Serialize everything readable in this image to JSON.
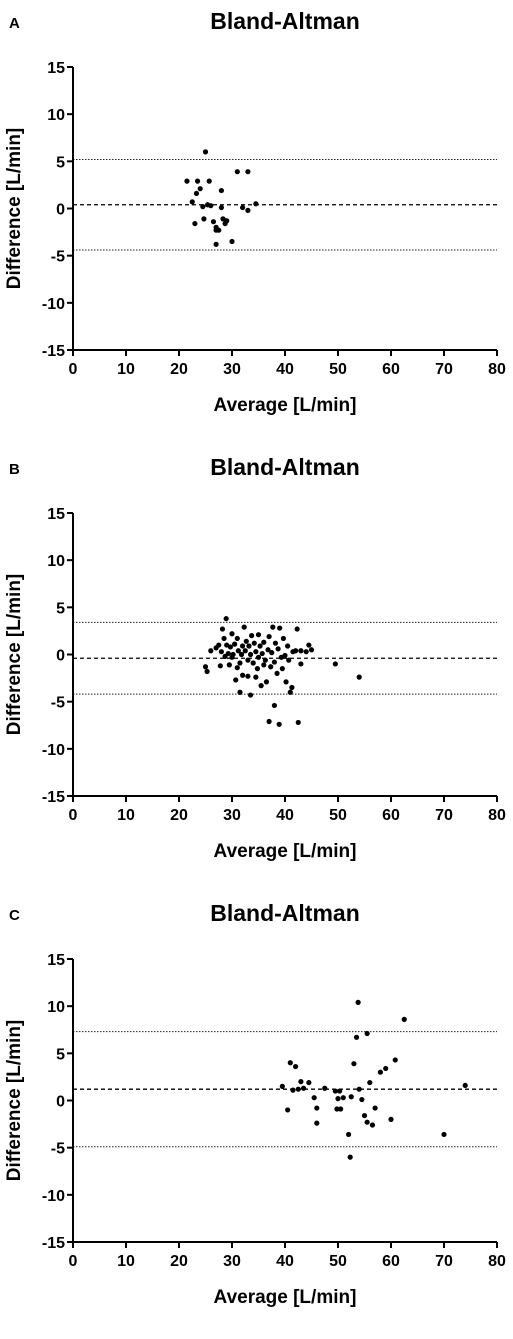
{
  "chart_data": [
    {
      "type": "scatter",
      "panel_label": "A",
      "title": "Bland-Altman",
      "xlabel": "Average [L/min]",
      "ylabel": "Difference [L/min]",
      "xlim": [
        0,
        80
      ],
      "ylim": [
        -15,
        15
      ],
      "x_ticks": [
        0,
        10,
        20,
        30,
        40,
        50,
        60,
        70,
        80
      ],
      "y_ticks": [
        15,
        10,
        5,
        0,
        -5,
        -10,
        -15
      ],
      "bias": 0.4,
      "upper_loa": 5.2,
      "lower_loa": -4.4,
      "points": [
        [
          21.5,
          2.9
        ],
        [
          22.5,
          0.7
        ],
        [
          23.0,
          -1.6
        ],
        [
          23.3,
          1.6
        ],
        [
          23.5,
          2.9
        ],
        [
          24.0,
          2.1
        ],
        [
          24.5,
          0.2
        ],
        [
          24.7,
          -1.1
        ],
        [
          25.0,
          6.0
        ],
        [
          25.4,
          0.4
        ],
        [
          25.7,
          2.9
        ],
        [
          26.0,
          0.3
        ],
        [
          26.5,
          -1.4
        ],
        [
          27.0,
          -2.0
        ],
        [
          27.0,
          -2.3
        ],
        [
          27.0,
          -3.8
        ],
        [
          27.5,
          -2.3
        ],
        [
          28.0,
          0.1
        ],
        [
          28.0,
          1.9
        ],
        [
          28.3,
          -1.1
        ],
        [
          28.7,
          -1.6
        ],
        [
          29.0,
          -1.3
        ],
        [
          30.0,
          -3.5
        ],
        [
          31.0,
          3.9
        ],
        [
          32.0,
          0.1
        ],
        [
          33.0,
          3.9
        ],
        [
          33.0,
          -0.2
        ],
        [
          34.5,
          0.5
        ]
      ]
    },
    {
      "type": "scatter",
      "panel_label": "B",
      "title": "Bland-Altman",
      "xlabel": "Average [L/min]",
      "ylabel": "Difference [L/min]",
      "xlim": [
        0,
        80
      ],
      "ylim": [
        -15,
        15
      ],
      "x_ticks": [
        0,
        10,
        20,
        30,
        40,
        50,
        60,
        70,
        80
      ],
      "y_ticks": [
        15,
        10,
        5,
        0,
        -5,
        -10,
        -15
      ],
      "bias": -0.4,
      "upper_loa": 3.4,
      "lower_loa": -4.2,
      "points": [
        [
          25.0,
          -1.3
        ],
        [
          25.3,
          -1.8
        ],
        [
          26.0,
          0.4
        ],
        [
          27.0,
          0.7
        ],
        [
          27.5,
          1.0
        ],
        [
          27.8,
          -1.2
        ],
        [
          28.0,
          0.3
        ],
        [
          28.2,
          2.7
        ],
        [
          28.5,
          1.7
        ],
        [
          28.7,
          -0.2
        ],
        [
          28.9,
          3.8
        ],
        [
          29.0,
          1.0
        ],
        [
          29.3,
          0.1
        ],
        [
          29.5,
          -1.1
        ],
        [
          29.7,
          0.8
        ],
        [
          30.0,
          2.2
        ],
        [
          30.0,
          -0.3
        ],
        [
          30.2,
          0.0
        ],
        [
          30.5,
          1.1
        ],
        [
          30.7,
          -2.7
        ],
        [
          31.0,
          -1.4
        ],
        [
          31.0,
          1.7
        ],
        [
          31.2,
          0.4
        ],
        [
          31.5,
          -0.9
        ],
        [
          31.5,
          -4.0
        ],
        [
          31.8,
          0.0
        ],
        [
          32.0,
          0.9
        ],
        [
          32.0,
          -2.2
        ],
        [
          32.3,
          2.9
        ],
        [
          32.5,
          0.4
        ],
        [
          32.7,
          1.4
        ],
        [
          33.0,
          -0.6
        ],
        [
          33.0,
          -2.3
        ],
        [
          33.2,
          0.9
        ],
        [
          33.5,
          0.0
        ],
        [
          33.5,
          -4.3
        ],
        [
          33.7,
          2.0
        ],
        [
          34.0,
          -0.9
        ],
        [
          34.2,
          1.2
        ],
        [
          34.5,
          -2.4
        ],
        [
          34.5,
          0.3
        ],
        [
          34.8,
          -1.5
        ],
        [
          35.0,
          2.1
        ],
        [
          35.0,
          -0.3
        ],
        [
          35.3,
          0.9
        ],
        [
          35.5,
          -3.3
        ],
        [
          35.7,
          0.1
        ],
        [
          36.0,
          -1.1
        ],
        [
          36.0,
          1.3
        ],
        [
          36.3,
          -0.6
        ],
        [
          36.5,
          -2.9
        ],
        [
          36.8,
          0.5
        ],
        [
          37.0,
          -7.1
        ],
        [
          37.0,
          1.9
        ],
        [
          37.3,
          -1.3
        ],
        [
          37.5,
          0.2
        ],
        [
          37.7,
          2.9
        ],
        [
          38.0,
          -5.4
        ],
        [
          38.0,
          -0.8
        ],
        [
          38.2,
          1.2
        ],
        [
          38.5,
          -2.0
        ],
        [
          38.7,
          0.6
        ],
        [
          38.9,
          -7.4
        ],
        [
          39.0,
          2.8
        ],
        [
          39.3,
          -0.3
        ],
        [
          39.5,
          -1.5
        ],
        [
          39.7,
          1.7
        ],
        [
          40.0,
          -0.1
        ],
        [
          40.2,
          -2.9
        ],
        [
          40.5,
          0.9
        ],
        [
          40.7,
          -0.6
        ],
        [
          41.0,
          -4.0
        ],
        [
          41.3,
          -3.5
        ],
        [
          41.5,
          0.3
        ],
        [
          42.0,
          0.4
        ],
        [
          42.3,
          2.7
        ],
        [
          42.5,
          -7.2
        ],
        [
          43.0,
          -1.0
        ],
        [
          43.0,
          0.4
        ],
        [
          44.0,
          0.3
        ],
        [
          44.5,
          1.0
        ],
        [
          45.0,
          0.5
        ],
        [
          49.5,
          -1.0
        ],
        [
          54.0,
          -2.4
        ]
      ]
    },
    {
      "type": "scatter",
      "panel_label": "C",
      "title": "Bland-Altman",
      "xlabel": "Average [L/min]",
      "ylabel": "Difference [L/min]",
      "xlim": [
        0,
        80
      ],
      "ylim": [
        -15,
        15
      ],
      "x_ticks": [
        0,
        10,
        20,
        30,
        40,
        50,
        60,
        70,
        80
      ],
      "y_ticks": [
        15,
        10,
        5,
        0,
        -5,
        -10,
        -15
      ],
      "bias": 1.2,
      "upper_loa": 7.3,
      "lower_loa": -4.9,
      "points": [
        [
          39.5,
          1.5
        ],
        [
          40.5,
          -1.0
        ],
        [
          41.0,
          4.0
        ],
        [
          41.5,
          1.1
        ],
        [
          42.0,
          3.6
        ],
        [
          42.5,
          1.2
        ],
        [
          43.0,
          2.0
        ],
        [
          43.5,
          1.3
        ],
        [
          44.5,
          1.9
        ],
        [
          45.5,
          0.3
        ],
        [
          46.0,
          -0.8
        ],
        [
          46.0,
          -2.4
        ],
        [
          47.5,
          1.3
        ],
        [
          49.5,
          1.0
        ],
        [
          49.8,
          -0.9
        ],
        [
          50.0,
          0.2
        ],
        [
          50.3,
          1.0
        ],
        [
          50.5,
          -0.9
        ],
        [
          51.0,
          0.3
        ],
        [
          52.0,
          -3.6
        ],
        [
          52.3,
          -6.0
        ],
        [
          52.5,
          0.4
        ],
        [
          53.0,
          3.9
        ],
        [
          53.5,
          6.7
        ],
        [
          53.8,
          10.4
        ],
        [
          54.0,
          1.2
        ],
        [
          54.5,
          0.1
        ],
        [
          55.0,
          -1.6
        ],
        [
          55.5,
          -2.3
        ],
        [
          55.5,
          7.1
        ],
        [
          56.0,
          1.9
        ],
        [
          56.5,
          -2.6
        ],
        [
          57.0,
          -0.8
        ],
        [
          58.0,
          3.0
        ],
        [
          59.0,
          3.4
        ],
        [
          60.0,
          -2.0
        ],
        [
          60.8,
          4.3
        ],
        [
          62.5,
          8.6
        ],
        [
          70.0,
          -3.6
        ],
        [
          74.0,
          1.6
        ]
      ]
    }
  ]
}
